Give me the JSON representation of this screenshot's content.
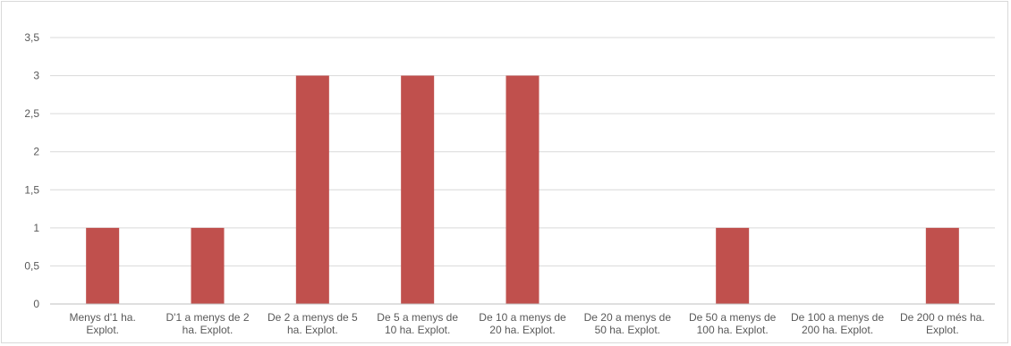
{
  "chart_data": {
    "type": "bar",
    "categories": [
      [
        "Menys d'1 ha.",
        "Explot."
      ],
      [
        "D'1 a menys de 2",
        "ha. Explot."
      ],
      [
        "De 2 a menys de 5",
        "ha. Explot."
      ],
      [
        "De 5 a menys de",
        "10 ha. Explot."
      ],
      [
        "De 10 a menys de",
        "20 ha. Explot."
      ],
      [
        "De 20 a menys de",
        "50 ha. Explot."
      ],
      [
        "De 50 a menys de",
        "100 ha. Explot."
      ],
      [
        "De 100 a menys de",
        "200 ha. Explot."
      ],
      [
        "De 200 o més ha.",
        "Explot."
      ]
    ],
    "values": [
      1,
      1,
      3,
      3,
      3,
      0,
      1,
      0,
      1
    ],
    "yticks": [
      "0",
      "0,5",
      "1",
      "1,5",
      "2",
      "2,5",
      "3",
      "3,5"
    ],
    "ylim": [
      0,
      3.5
    ],
    "title": "",
    "xlabel": "",
    "ylabel": "",
    "legend": "none",
    "grid": "horizontal",
    "bar_color": "#c0504d"
  }
}
